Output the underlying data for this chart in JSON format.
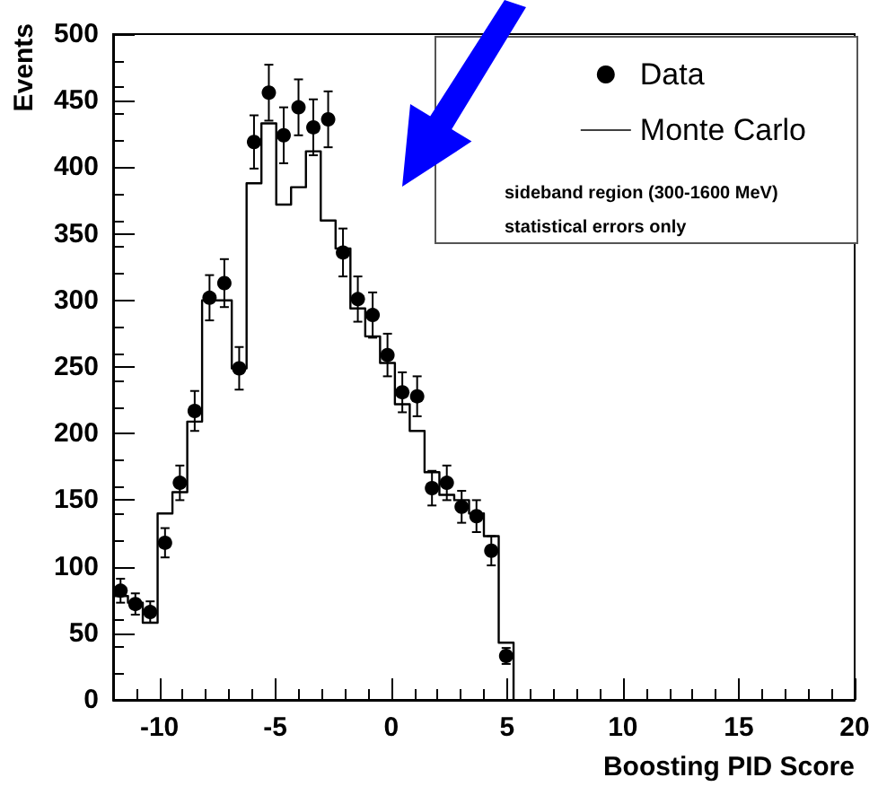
{
  "chart_data": {
    "type": "histogram",
    "xlabel": "Boosting PID Score",
    "ylabel": "Events",
    "xlim": [
      -12,
      20
    ],
    "xticks": [
      -10,
      -5,
      0,
      5,
      10,
      15,
      20
    ],
    "ylim": [
      0,
      500
    ],
    "yticks": [
      0,
      50,
      100,
      150,
      200,
      250,
      300,
      350,
      400,
      450,
      500
    ],
    "legend": "top right",
    "grid": false,
    "annotations": [
      "sideband region (300-1600 MeV)",
      "statistical errors only"
    ],
    "series": [
      {
        "name": "Data",
        "type": "scatter",
        "marker": "circle",
        "color": "#000000",
        "x": [
          -11.68,
          -11.04,
          -10.4,
          -9.76,
          -9.12,
          -8.48,
          -7.84,
          -7.2,
          -6.56,
          -5.92,
          -5.28,
          -4.64,
          -4,
          -3.36,
          -2.72,
          -2.08,
          -1.44,
          -0.8,
          -0.16,
          0.48,
          1.12,
          1.76,
          2.4,
          3.04,
          3.68,
          4.32,
          4.96
        ],
        "values": [
          82,
          72,
          66,
          118,
          163,
          217,
          302,
          313,
          249,
          419,
          456,
          424,
          445,
          430,
          436,
          336,
          301,
          289,
          259,
          231,
          228,
          159,
          163,
          145,
          138,
          112,
          33
        ],
        "errors": [
          9,
          8,
          8,
          11,
          13,
          15,
          17,
          18,
          16,
          20,
          21,
          21,
          21,
          21,
          21,
          18,
          17,
          17,
          16,
          15,
          15,
          13,
          13,
          12,
          12,
          11,
          6
        ]
      },
      {
        "name": "Monte Carlo",
        "color": "#000000",
        "bins": [
          -12,
          -11.36,
          -10.72,
          -10.08,
          -9.44,
          -8.8,
          -8.16,
          -7.52,
          -6.88,
          -6.24,
          -5.6,
          -4.96,
          -4.32,
          -3.68,
          -3.04,
          -2.4,
          -1.76,
          -1.12,
          -0.48,
          0.16,
          0.8,
          1.44,
          2.08,
          2.72,
          3.36,
          4,
          4.64,
          5.28
        ],
        "values": [
          78,
          73,
          58,
          140,
          156,
          209,
          300,
          300,
          249,
          388,
          433,
          372,
          385,
          412,
          360,
          339,
          294,
          273,
          253,
          222,
          202,
          171,
          154,
          150,
          140,
          123,
          43
        ]
      }
    ]
  }
}
